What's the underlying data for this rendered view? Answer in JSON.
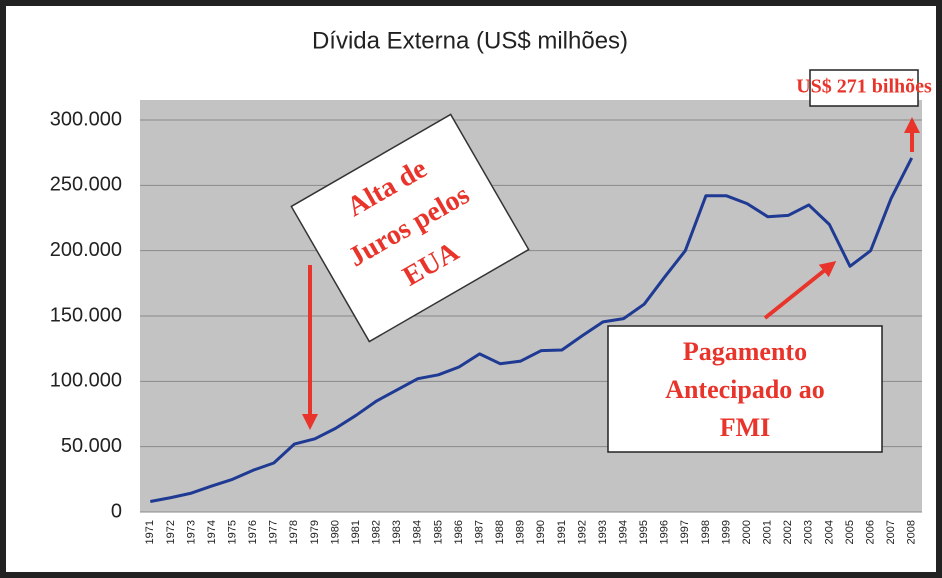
{
  "chart_data": {
    "type": "line",
    "title": "Dívida Externa (US$ milhões)",
    "categories": [
      "1971",
      "1972",
      "1973",
      "1974",
      "1975",
      "1976",
      "1977",
      "1978",
      "1979",
      "1980",
      "1981",
      "1982",
      "1983",
      "1984",
      "1985",
      "1986",
      "1987",
      "1988",
      "1989",
      "1990",
      "1991",
      "1992",
      "1993",
      "1994",
      "1995",
      "1996",
      "1997",
      "1998",
      "1999",
      "2000",
      "2001",
      "2002",
      "2003",
      "2004",
      "2005",
      "2006",
      "2007",
      "2008"
    ],
    "series": [
      {
        "name": "Dívida Externa",
        "color": "#1f3a93",
        "values": [
          8000,
          11000,
          14500,
          20000,
          25000,
          32000,
          37500,
          52000,
          56000,
          64000,
          74000,
          85000,
          93500,
          102000,
          105000,
          111000,
          121000,
          113500,
          115500,
          123500,
          124000,
          135000,
          145500,
          148000,
          159000,
          180000,
          200000,
          242000,
          242000,
          236000,
          226000,
          227000,
          235000,
          220000,
          188000,
          200000,
          240000,
          271000
        ]
      }
    ],
    "ylim": [
      0,
      300000
    ],
    "yticks": [
      0,
      {
        "value": 50000,
        "label": "50.000"
      },
      {
        "value": 100000,
        "label": "100.000"
      },
      {
        "value": 150000,
        "label": "150.000"
      },
      {
        "value": 200000,
        "label": "200.000"
      },
      {
        "value": 250000,
        "label": "250.000"
      },
      {
        "value": 300000,
        "label": "300.000"
      }
    ],
    "grid": true,
    "annotations": [
      {
        "lines": [
          "Alta de",
          "Juros pelos",
          "EUA"
        ]
      },
      {
        "lines": [
          "Pagamento",
          "Antecipado ao",
          "FMI"
        ]
      },
      {
        "lines": [
          "US$ 271 bilhões"
        ]
      }
    ]
  }
}
